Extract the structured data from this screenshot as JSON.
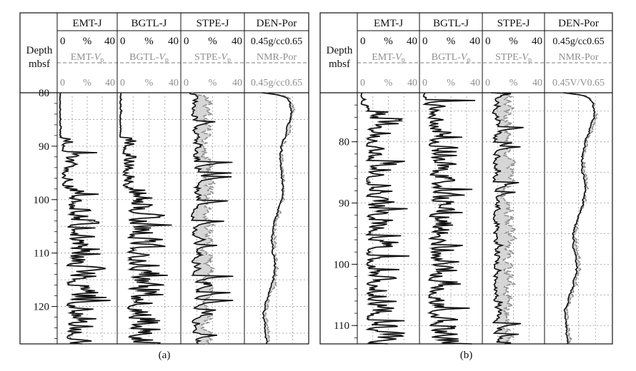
{
  "panels": [
    {
      "label": "(a)",
      "depth_header": [
        "Depth",
        "mbsf"
      ],
      "tracks": [
        {
          "title": "EMT-J",
          "scale_top": [
            "0",
            "%",
            "40"
          ],
          "curve2": "EMT-",
          "curve2_sub": "V",
          "curve2_subsub": "p",
          "scale_bottom": [
            "0",
            "%",
            "40"
          ]
        },
        {
          "title": "BGTL-J",
          "scale_top": [
            "0",
            "%",
            "40"
          ],
          "curve2": "BGTL-",
          "curve2_sub": "V",
          "curve2_subsub": "p",
          "scale_bottom": [
            "0",
            "%",
            "40"
          ]
        },
        {
          "title": "STPE-J",
          "scale_top": [
            "0",
            "%",
            "40"
          ],
          "curve2": "STPE-",
          "curve2_sub": "V",
          "curve2_subsub": "p",
          "scale_bottom": [
            "0",
            "%",
            "40"
          ]
        },
        {
          "title": "DEN-Por",
          "scale_top": [
            "0.45g/cc0.65"
          ],
          "curve2": "NMR-Por",
          "curve2_sub": "",
          "curve2_subsub": "",
          "scale_bottom": [
            "0.45g/cc0.65"
          ]
        }
      ],
      "depth_ticks": [
        "80",
        "90",
        "100",
        "110",
        "120"
      ]
    },
    {
      "label": "(b)",
      "depth_header": [
        "Depth",
        "mbsf"
      ],
      "tracks": [
        {
          "title": "EMT-J",
          "scale_top": [
            "0",
            "%",
            "40"
          ],
          "curve2": "EMT-",
          "curve2_sub": "V",
          "curve2_subsub": "p",
          "scale_bottom": [
            "0",
            "%",
            "40"
          ]
        },
        {
          "title": "BGTL-J",
          "scale_top": [
            "0",
            "%",
            "40"
          ],
          "curve2": "BGTL-",
          "curve2_sub": "V",
          "curve2_subsub": "p",
          "scale_bottom": [
            "0",
            "%",
            "40"
          ]
        },
        {
          "title": "STPE-J",
          "scale_top": [
            "0",
            "%",
            "40"
          ],
          "curve2": "STPE-",
          "curve2_sub": "V",
          "curve2_subsub": "p",
          "scale_bottom": [
            "0",
            "%",
            "40"
          ]
        },
        {
          "title": "DEN-Por",
          "scale_top": [
            "0.45g/cc0.65"
          ],
          "curve2": "NMR-Por",
          "curve2_sub": "",
          "curve2_subsub": "",
          "scale_bottom": [
            "0.45V/V0.65"
          ]
        }
      ],
      "depth_ticks": [
        "80",
        "90",
        "100",
        "110"
      ]
    }
  ],
  "chart_data": [
    {
      "type": "line",
      "panel": "(a)",
      "y_axis": "Depth (mbsf)",
      "ylim": [
        80,
        127
      ],
      "y_ticks": [
        80,
        90,
        100,
        110,
        120
      ],
      "tracks": [
        "EMT-J / EMT-Vp",
        "BGTL-J / BGTL-Vp",
        "STPE-J / STPE-Vp",
        "DEN-Por / NMR-Por"
      ],
      "x_range_percent": [
        0,
        40
      ],
      "x_range_density": [
        0.45,
        0.65
      ],
      "grid": true
    },
    {
      "type": "line",
      "panel": "(b)",
      "y_axis": "Depth (mbsf)",
      "ylim": [
        72,
        113
      ],
      "y_ticks": [
        80,
        90,
        100,
        110
      ],
      "tracks": [
        "EMT-J / EMT-Vp",
        "BGTL-J / BGTL-Vp",
        "STPE-J / STPE-Vp",
        "DEN-Por / NMR-Por"
      ],
      "x_range_percent": [
        0,
        40
      ],
      "x_range_density": [
        0.45,
        0.65
      ],
      "grid": true
    }
  ],
  "colors": {
    "primary": "#111111",
    "secondary": "#8f8f8f",
    "fill": "#b5b5b5",
    "grid": "#999999"
  }
}
